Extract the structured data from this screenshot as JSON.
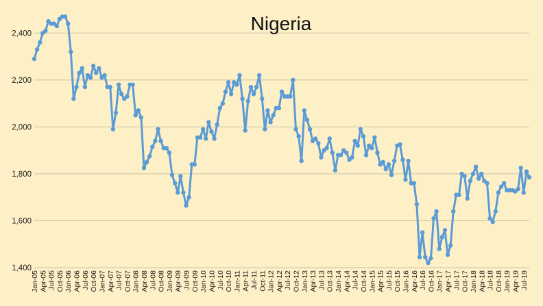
{
  "chart_data": {
    "type": "line",
    "title": "Nigeria",
    "xlabel": "",
    "ylabel": "",
    "ylim": [
      1400,
      2500
    ],
    "yticks": [
      1400,
      1600,
      1800,
      2000,
      2200,
      2400
    ],
    "ytick_labels": [
      "1,400",
      "1,600",
      "1,800",
      "2,000",
      "2,200",
      "2,400"
    ],
    "grid": true,
    "line_color": "#5b9bd5",
    "background": "#fdf0c6",
    "x_tick_labels": [
      "Jan-05",
      "Apr-05",
      "Jul-05",
      "Oct-05",
      "Jan-06",
      "Apr-06",
      "Jul-06",
      "Oct-06",
      "Jan-07",
      "Apr-07",
      "Jul-07",
      "Oct-07",
      "Jan-08",
      "Apr-08",
      "Jul-08",
      "Oct-08",
      "Jan-09",
      "Apr-09",
      "Jul-09",
      "Oct-09",
      "Jan-10",
      "Apr-10",
      "Jul-10",
      "Oct-10",
      "Jan-11",
      "Apr-11",
      "Jul-11",
      "Oct-11",
      "Jan-12",
      "Apr-12",
      "Jul-12",
      "Oct-12",
      "Jan-13",
      "Apr-13",
      "Jul-13",
      "Oct-13",
      "Jan-14",
      "Apr-14",
      "Jul-14",
      "Oct-14",
      "Jan-15",
      "Apr-15",
      "Jul-15",
      "Oct-15",
      "Jan-16",
      "Apr-16",
      "Jul-16",
      "Oct-16",
      "Jan-17",
      "Apr-17",
      "Jul-17",
      "Oct-17",
      "Jan-18",
      "Apr-18",
      "Jul-18",
      "Oct-18",
      "Jan-19",
      "Apr-19",
      "Jul-19"
    ],
    "series": [
      {
        "values": [
          2290,
          2330,
          2360,
          2400,
          2410,
          2450,
          2440,
          2440,
          2430,
          2460,
          2470,
          2470,
          2440,
          2320,
          2120,
          2170,
          2230,
          2250,
          2170,
          2220,
          2210,
          2260,
          2230,
          2250,
          2210,
          2220,
          2170,
          2170,
          1990,
          2060,
          2180,
          2140,
          2120,
          2130,
          2180,
          2180,
          2050,
          2070,
          2040,
          1825,
          1850,
          1875,
          1915,
          1940,
          1990,
          1940,
          1910,
          1910,
          1890,
          1795,
          1760,
          1720,
          1790,
          1720,
          1665,
          1700,
          1840,
          1840,
          1955,
          1955,
          1990,
          1950,
          2020,
          1980,
          1950,
          2010,
          2080,
          2100,
          2150,
          2190,
          2140,
          2190,
          2180,
          2220,
          2120,
          1985,
          2110,
          2170,
          2140,
          2170,
          2220,
          2120,
          1990,
          2070,
          2020,
          2050,
          2080,
          2080,
          2150,
          2130,
          2130,
          2130,
          2200,
          1990,
          1960,
          1855,
          2070,
          2030,
          1990,
          1940,
          1950,
          1930,
          1870,
          1900,
          1910,
          1950,
          1890,
          1815,
          1880,
          1880,
          1900,
          1890,
          1860,
          1870,
          1940,
          1920,
          1990,
          1960,
          1880,
          1920,
          1910,
          1955,
          1890,
          1840,
          1850,
          1820,
          1840,
          1795,
          1855,
          1920,
          1925,
          1860,
          1775,
          1855,
          1760,
          1760,
          1670,
          1445,
          1550,
          1445,
          1420,
          1440,
          1610,
          1640,
          1480,
          1530,
          1560,
          1455,
          1495,
          1640,
          1710,
          1710,
          1800,
          1790,
          1695,
          1770,
          1800,
          1830,
          1780,
          1800,
          1770,
          1760,
          1610,
          1595,
          1640,
          1720,
          1745,
          1760,
          1730,
          1730,
          1730,
          1725,
          1735,
          1825,
          1720,
          1810,
          1785
        ]
      }
    ]
  }
}
